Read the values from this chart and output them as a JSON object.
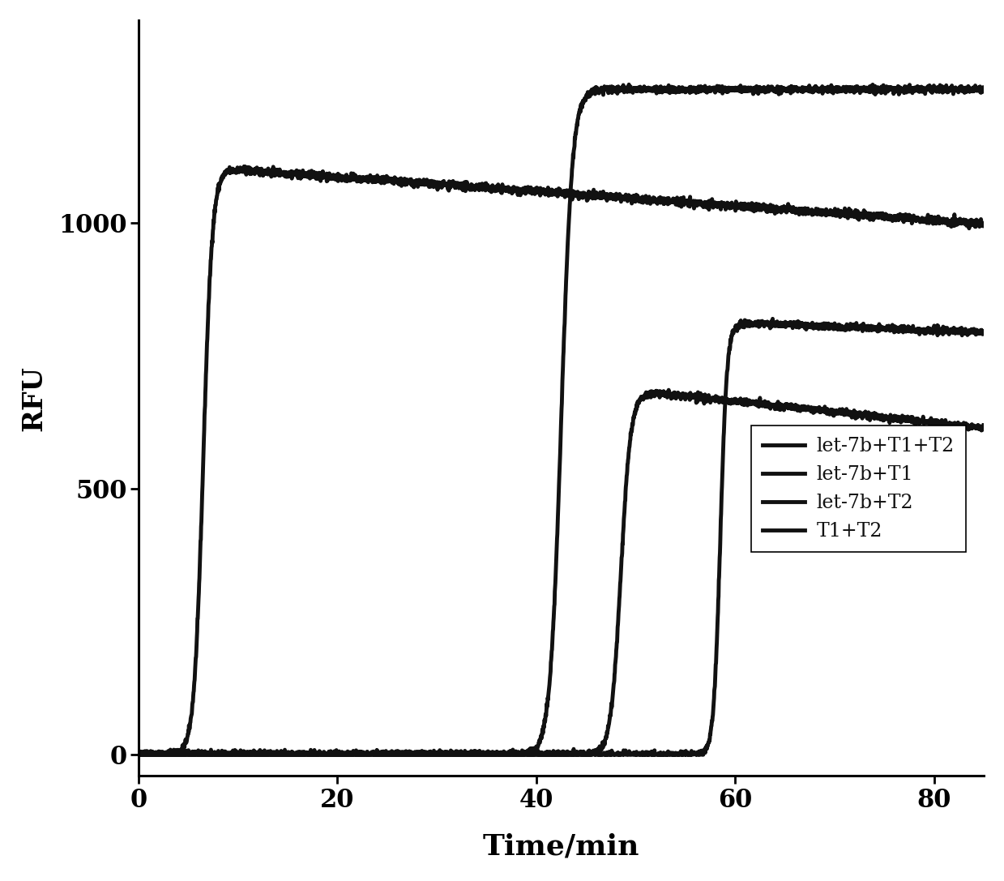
{
  "xlabel": "Time/min",
  "ylabel": "RFU",
  "xlim": [
    0,
    85
  ],
  "ylim": [
    -40,
    1380
  ],
  "xticks": [
    0,
    20,
    40,
    60,
    80
  ],
  "yticks": [
    0,
    500,
    1000
  ],
  "legend_labels": [
    "let-7b+T1+T2",
    "let-7b+T1",
    "let-7b+T2",
    "T1+T2"
  ],
  "line_color": "#111111",
  "background_color": "#ffffff",
  "linewidths": [
    3.5,
    3.5,
    3.5,
    3.5
  ],
  "xlabel_fontsize": 26,
  "ylabel_fontsize": 24,
  "tick_fontsize": 22,
  "legend_fontsize": 17,
  "curves": [
    {
      "name": "let-7b+T1+T2",
      "t_start": 4.0,
      "t_rise": 6.5,
      "k_rise": 2.2,
      "y_peak": 1100,
      "y_plateau": 1000,
      "t_decay_start": 9.0,
      "decay_rate": 1.35,
      "noise_std": 3.5,
      "seed": 42
    },
    {
      "name": "let-7b+T1",
      "t_start": 36.0,
      "t_rise": 42.5,
      "k_rise": 1.8,
      "y_peak": 1250,
      "y_plateau": 1190,
      "t_decay_start": 47.0,
      "decay_rate": 0.0,
      "noise_std": 3.0,
      "seed": 43
    },
    {
      "name": "let-7b+T2",
      "t_start": 44.0,
      "t_rise": 48.5,
      "k_rise": 2.0,
      "y_peak": 680,
      "y_plateau": 590,
      "t_decay_start": 52.0,
      "decay_rate": 2.0,
      "noise_std": 3.0,
      "seed": 44
    },
    {
      "name": "T1+T2",
      "t_start": 56.0,
      "t_rise": 58.5,
      "k_rise": 3.0,
      "y_peak": 810,
      "y_plateau": 780,
      "t_decay_start": 62.0,
      "decay_rate": 0.7,
      "noise_std": 3.0,
      "seed": 45
    }
  ]
}
